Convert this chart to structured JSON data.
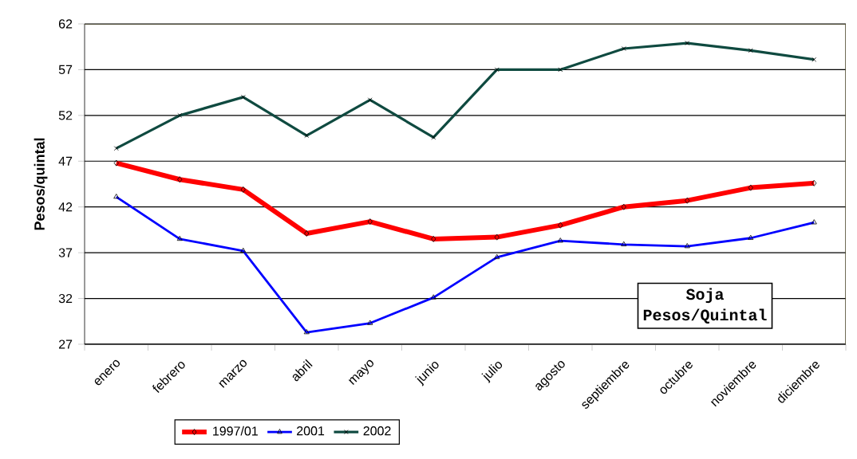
{
  "chart_data": {
    "type": "line",
    "ylabel": "Pesos/quintal",
    "categories": [
      "enero",
      "febrero",
      "marzo",
      "abril",
      "mayo",
      "junio",
      "julio",
      "agosto",
      "septiembre",
      "octubre",
      "noviembre",
      "diciembre"
    ],
    "series": [
      {
        "name": "1997/01",
        "color": "#ff0000",
        "marker": "diamond",
        "values": [
          46.8,
          45.0,
          43.9,
          39.1,
          40.4,
          38.5,
          38.7,
          40.0,
          42.0,
          42.7,
          44.1,
          44.6
        ]
      },
      {
        "name": "2001",
        "color": "#0000ff",
        "marker": "triangle",
        "values": [
          43.1,
          38.5,
          37.2,
          28.3,
          29.3,
          32.1,
          36.5,
          38.3,
          37.9,
          37.7,
          38.6,
          40.3
        ]
      },
      {
        "name": "2002",
        "color": "#0f4a40",
        "marker": "cross",
        "values": [
          48.4,
          52.0,
          54.0,
          49.8,
          53.7,
          49.6,
          57.0,
          57.0,
          59.3,
          59.9,
          59.1,
          58.1
        ]
      }
    ],
    "ylim": [
      27,
      62
    ],
    "yticks": [
      27,
      32,
      37,
      42,
      47,
      52,
      57,
      62
    ],
    "grid": "y",
    "legend": "bottom",
    "annotations": [
      "Soja",
      "Pesos/Quintal"
    ]
  }
}
